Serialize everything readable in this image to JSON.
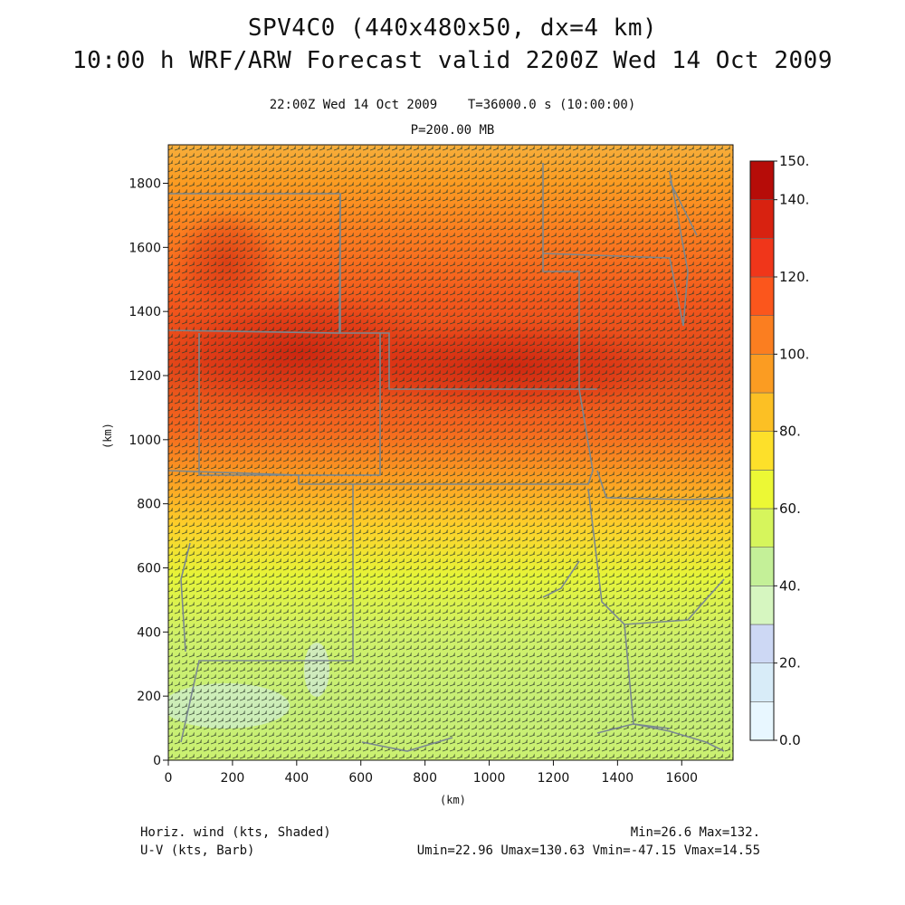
{
  "header": {
    "title_line1": "SPV4C0 (440x480x50, dx=4 km)",
    "title_line2": "10:00 h WRF/ARW Forecast valid 2200Z Wed 14 Oct 2009",
    "valid_time": "22:00Z Wed 14 Oct 2009",
    "sim_time": "T=36000.0 s (10:00:00)",
    "pressure_level": "P=200.00 MB"
  },
  "footer": {
    "field1": "Horiz. wind (kts, Shaded)",
    "field2": "U-V (kts, Barb)",
    "minmax": "Min=26.6 Max=132.",
    "uv_stats": "Umin=22.96 Umax=130.63 Vmin=-47.15 Vmax=14.55"
  },
  "axes": {
    "x_unit": "(km)",
    "y_unit": "(km)",
    "x_ticks": [
      "0",
      "200",
      "400",
      "600",
      "800",
      "1000",
      "1200",
      "1400",
      "1600"
    ],
    "y_ticks": [
      "0",
      "200",
      "400",
      "600",
      "800",
      "1000",
      "1200",
      "1400",
      "1600",
      "1800"
    ],
    "x_range_km": [
      0,
      1760
    ],
    "y_range_km": [
      0,
      1920
    ]
  },
  "colorbar": {
    "labels": [
      "150.",
      "140.",
      "120.",
      "100.",
      "80.",
      "60.",
      "40.",
      "20.",
      "0.0"
    ],
    "levels": [
      0,
      10,
      20,
      30,
      40,
      50,
      60,
      70,
      80,
      90,
      100,
      110,
      120,
      130,
      140,
      150
    ],
    "colors": [
      "#e8f7ff",
      "#d8ecf8",
      "#cdd8f4",
      "#d6f6c0",
      "#c4f098",
      "#d6f55c",
      "#ecf835",
      "#fde02a",
      "#fcc024",
      "#fb9c22",
      "#fb7e20",
      "#fb561c",
      "#f0361a",
      "#d82210",
      "#b60c08"
    ]
  },
  "map_colors": {
    "barb": "#2a3a28",
    "borders": "#7a8890"
  }
}
